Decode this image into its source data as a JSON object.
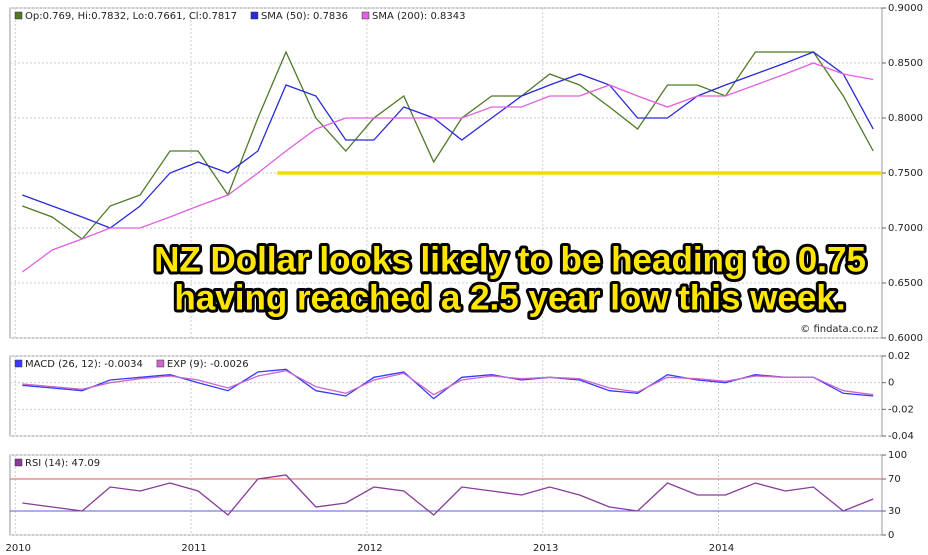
{
  "chart_data": [
    {
      "type": "line",
      "xlim": [
        2009.97,
        2014.93
      ],
      "x": [
        2010.04,
        2010.21,
        2010.38,
        2010.54,
        2010.71,
        2010.88,
        2011.04,
        2011.21,
        2011.38,
        2011.54,
        2011.71,
        2011.88,
        2012.04,
        2012.21,
        2012.38,
        2012.54,
        2012.71,
        2012.88,
        2013.04,
        2013.21,
        2013.38,
        2013.54,
        2013.71,
        2013.88,
        2014.04,
        2014.21,
        2014.38,
        2014.54,
        2014.71,
        2014.88
      ],
      "ylim": [
        0.6,
        0.9
      ],
      "yticks": [
        {
          "value": 0.6,
          "label": "0.6000"
        },
        {
          "value": 0.65,
          "label": "0.6500"
        },
        {
          "value": 0.7,
          "label": "0.7000"
        },
        {
          "value": 0.75,
          "label": "0.7500"
        },
        {
          "value": 0.8,
          "label": "0.8000"
        },
        {
          "value": 0.85,
          "label": "0.8500"
        },
        {
          "value": 0.9,
          "label": "0.9000"
        }
      ],
      "grid": true,
      "series": [
        {
          "name": "Op:0.769, Hi:0.7832, Lo:0.7661, Cl:0.7817",
          "color": "#4f7a28",
          "values": [
            0.72,
            0.71,
            0.69,
            0.72,
            0.73,
            0.77,
            0.77,
            0.73,
            0.8,
            0.86,
            0.8,
            0.77,
            0.8,
            0.82,
            0.76,
            0.8,
            0.82,
            0.82,
            0.84,
            0.83,
            0.81,
            0.79,
            0.83,
            0.83,
            0.82,
            0.86,
            0.86,
            0.86,
            0.82,
            0.77
          ]
        },
        {
          "name": "SMA (50): 0.7836",
          "color": "#2a2ad8",
          "values": [
            0.73,
            0.72,
            0.71,
            0.7,
            0.72,
            0.75,
            0.76,
            0.75,
            0.77,
            0.83,
            0.82,
            0.78,
            0.78,
            0.81,
            0.8,
            0.78,
            0.8,
            0.82,
            0.83,
            0.84,
            0.83,
            0.8,
            0.8,
            0.82,
            0.83,
            0.84,
            0.85,
            0.86,
            0.84,
            0.79
          ]
        },
        {
          "name": "SMA (200): 0.8343",
          "color": "#e060e0",
          "values": [
            0.66,
            0.68,
            0.69,
            0.7,
            0.7,
            0.71,
            0.72,
            0.73,
            0.75,
            0.77,
            0.79,
            0.8,
            0.8,
            0.8,
            0.8,
            0.8,
            0.81,
            0.81,
            0.82,
            0.82,
            0.83,
            0.82,
            0.81,
            0.82,
            0.82,
            0.83,
            0.84,
            0.85,
            0.84,
            0.835
          ]
        }
      ],
      "reference_line": {
        "value": 0.75,
        "from": 2011.49,
        "color": "#f0dc00"
      },
      "annotations": [
        "NZ Dollar looks likely to be heading to 0.75",
        "having reached a 2.5 year low this week."
      ],
      "credit": "© findata.co.nz"
    },
    {
      "type": "line",
      "xlim": [
        2009.97,
        2014.93
      ],
      "x": [
        2010.04,
        2010.21,
        2010.38,
        2010.54,
        2010.71,
        2010.88,
        2011.04,
        2011.21,
        2011.38,
        2011.54,
        2011.71,
        2011.88,
        2012.04,
        2012.21,
        2012.38,
        2012.54,
        2012.71,
        2012.88,
        2013.04,
        2013.21,
        2013.38,
        2013.54,
        2013.71,
        2013.88,
        2014.04,
        2014.21,
        2014.38,
        2014.54,
        2014.71,
        2014.88
      ],
      "ylim": [
        -0.04,
        0.02
      ],
      "yticks": [
        -0.04,
        -0.02,
        0,
        0.02
      ],
      "grid": true,
      "series": [
        {
          "name": "MACD (26, 12): -0.0034",
          "color": "#3a3aff",
          "values": [
            -0.002,
            -0.004,
            -0.006,
            0.002,
            0.004,
            0.006,
            0.0,
            -0.006,
            0.008,
            0.01,
            -0.006,
            -0.01,
            0.004,
            0.008,
            -0.012,
            0.004,
            0.006,
            0.002,
            0.004,
            0.002,
            -0.006,
            -0.008,
            0.006,
            0.002,
            0.0,
            0.006,
            0.004,
            0.004,
            -0.008,
            -0.01
          ]
        },
        {
          "name": "EXP (9): -0.0026",
          "color": "#cc66cc",
          "values": [
            -0.001,
            -0.003,
            -0.005,
            0.0,
            0.003,
            0.005,
            0.002,
            -0.004,
            0.005,
            0.009,
            -0.003,
            -0.008,
            0.002,
            0.007,
            -0.009,
            0.002,
            0.005,
            0.003,
            0.004,
            0.003,
            -0.004,
            -0.007,
            0.004,
            0.003,
            0.001,
            0.005,
            0.004,
            0.004,
            -0.006,
            -0.009
          ]
        }
      ]
    },
    {
      "type": "line",
      "xlim": [
        2009.97,
        2014.93
      ],
      "x": [
        2010.04,
        2010.21,
        2010.38,
        2010.54,
        2010.71,
        2010.88,
        2011.04,
        2011.21,
        2011.38,
        2011.54,
        2011.71,
        2011.88,
        2012.04,
        2012.21,
        2012.38,
        2012.54,
        2012.71,
        2012.88,
        2013.04,
        2013.21,
        2013.38,
        2013.54,
        2013.71,
        2013.88,
        2014.04,
        2014.21,
        2014.38,
        2014.54,
        2014.71,
        2014.88
      ],
      "ylim": [
        0,
        100
      ],
      "yticks": [
        0,
        30,
        70,
        100
      ],
      "xticks": [
        2010,
        2011,
        2012,
        2013,
        2014
      ],
      "grid": true,
      "levels": [
        {
          "value": 70,
          "color": "#e05a5a"
        },
        {
          "value": 30,
          "color": "#5a5ae0"
        }
      ],
      "series": [
        {
          "name": "RSI (14): 47.09",
          "color": "#8a3a9a",
          "values": [
            40,
            35,
            30,
            60,
            55,
            65,
            55,
            25,
            70,
            75,
            35,
            40,
            60,
            55,
            25,
            60,
            55,
            50,
            60,
            50,
            35,
            30,
            65,
            50,
            50,
            65,
            55,
            60,
            30,
            45
          ]
        }
      ]
    }
  ]
}
